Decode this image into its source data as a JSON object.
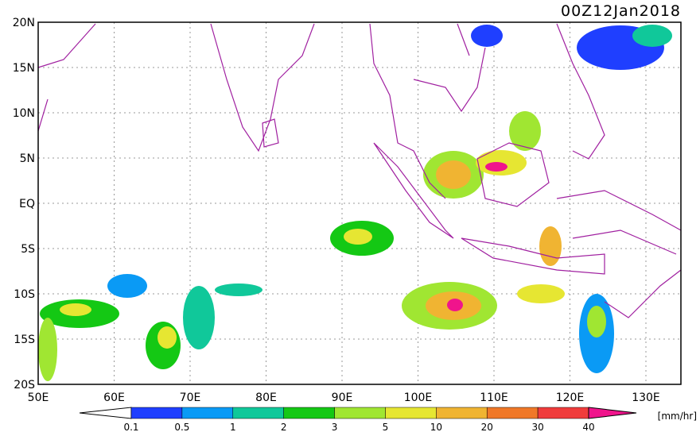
{
  "map": {
    "title": "00Z12Jan2018",
    "lat_labels": [
      "20N",
      "15N",
      "10N",
      "5N",
      "EQ",
      "5S",
      "10S",
      "15S",
      "20S"
    ],
    "lon_labels": [
      "50E",
      "60E",
      "70E",
      "80E",
      "90E",
      "100E",
      "110E",
      "120E",
      "130E"
    ],
    "colorbar": {
      "labels": [
        "0.1",
        "0.5",
        "1",
        "2",
        "3",
        "5",
        "10",
        "20",
        "30",
        "40"
      ],
      "colors": [
        "#ffffff",
        "#1f3fff",
        "#0a9af5",
        "#10c89a",
        "#14c814",
        "#a0e632",
        "#e6e632",
        "#f0b432",
        "#f07828",
        "#f03c3c",
        "#f0148c"
      ],
      "unit": "[mm/hr]"
    }
  }
}
